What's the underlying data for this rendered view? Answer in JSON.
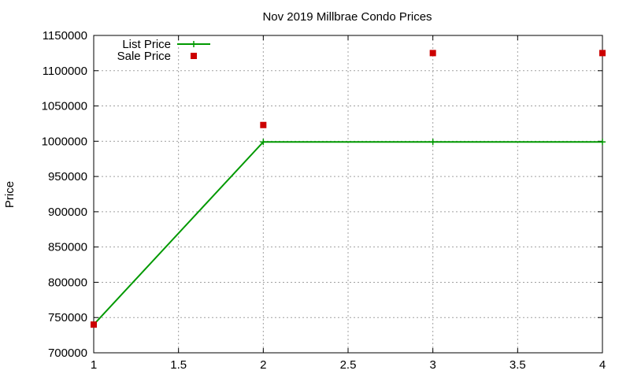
{
  "chart_data": {
    "type": "line",
    "title": "Nov 2019 Millbrae Condo Prices",
    "xlabel": "",
    "ylabel": "Price",
    "xlim": [
      1,
      4
    ],
    "ylim": [
      700000,
      1150000
    ],
    "x_ticks": [
      "1",
      "1.5",
      "2",
      "2.5",
      "3",
      "3.5",
      "4"
    ],
    "x_tick_values": [
      1,
      1.5,
      2,
      2.5,
      3,
      3.5,
      4
    ],
    "y_ticks": [
      "700000",
      "750000",
      "800000",
      "850000",
      "900000",
      "950000",
      "1000000",
      "1050000",
      "1100000",
      "1150000"
    ],
    "y_tick_values": [
      700000,
      750000,
      800000,
      850000,
      900000,
      950000,
      1000000,
      1050000,
      1100000,
      1150000
    ],
    "grid": true,
    "legend_position": "top-left",
    "series": [
      {
        "name": "List Price",
        "style": "line-points",
        "marker": "plus",
        "color": "#009900",
        "x": [
          1,
          2,
          3,
          4
        ],
        "y": [
          740000,
          999000,
          999000,
          999000
        ]
      },
      {
        "name": "Sale Price",
        "style": "points",
        "marker": "square",
        "color": "#cc0000",
        "x": [
          1,
          2,
          3,
          4
        ],
        "y": [
          740000,
          1023000,
          1125000,
          1125000
        ]
      }
    ]
  }
}
